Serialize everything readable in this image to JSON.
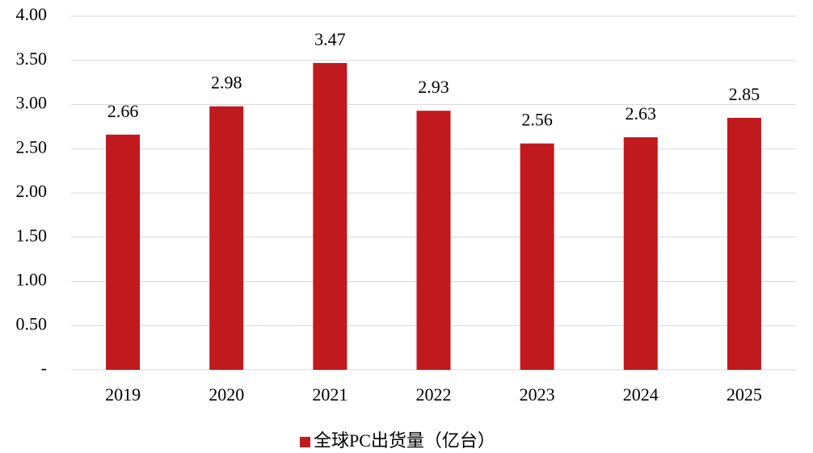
{
  "chart_data": {
    "type": "bar",
    "categories": [
      "2019",
      "2020",
      "2021",
      "2022",
      "2023",
      "2024",
      "2025"
    ],
    "series": [
      {
        "name": "全球PC出货量（亿台）",
        "color": "#c0191e",
        "values": [
          2.66,
          2.98,
          3.47,
          2.93,
          2.56,
          2.63,
          2.85
        ]
      }
    ],
    "ylim": [
      0,
      4
    ],
    "yticks": [
      {
        "value": 0,
        "label": "-"
      },
      {
        "value": 0.5,
        "label": "0.50"
      },
      {
        "value": 1,
        "label": "1.00"
      },
      {
        "value": 1.5,
        "label": "1.50"
      },
      {
        "value": 2,
        "label": "2.00"
      },
      {
        "value": 2.5,
        "label": "2.50"
      },
      {
        "value": 3,
        "label": "3.00"
      },
      {
        "value": 3.5,
        "label": "3.50"
      },
      {
        "value": 4,
        "label": "4.00"
      }
    ],
    "grid": true,
    "legend": "bottom"
  }
}
